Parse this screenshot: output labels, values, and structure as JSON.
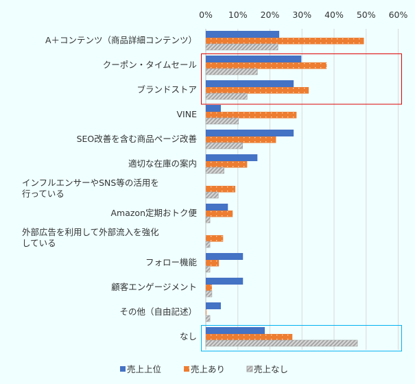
{
  "chart_data": {
    "type": "bar",
    "orientation": "horizontal",
    "categories": [
      "A＋コンテンツ（商品詳細コンテンツ）",
      "クーポン・タイムセール",
      "ブランドストア",
      "VINE",
      "SEO改善を含む商品ページ改善",
      "適切な在庫の案内",
      "インフルエンサーやSNS等の活用を行っている",
      "Amazon定期おトク便",
      "外部広告を利用して外部流入を強化している",
      "フォロー機能",
      "顧客エンゲージメント",
      "その他（自由記述）",
      "なし"
    ],
    "category_lines": [
      [
        "A＋コンテンツ（商品詳細コンテンツ）"
      ],
      [
        "クーポン・タイムセール"
      ],
      [
        "ブランドストア"
      ],
      [
        "VINE"
      ],
      [
        "SEO改善を含む商品ページ改善"
      ],
      [
        "適切な在庫の案内"
      ],
      [
        "インフルエンサーやSNS等の活用を",
        "行っている"
      ],
      [
        "Amazon定期おトク便"
      ],
      [
        "外部広告を利用して外部流入を強化",
        "している"
      ],
      [
        "フォロー機能"
      ],
      [
        "顧客エンゲージメント"
      ],
      [
        "その他（自由記述）"
      ],
      [
        "なし"
      ]
    ],
    "series": [
      {
        "name": "売上上位",
        "color": "#4472c4",
        "pattern": "solid",
        "values": [
          22.9,
          29.8,
          27.4,
          4.7,
          27.4,
          16.1,
          0,
          6.9,
          0,
          11.6,
          11.6,
          4.7,
          18.4
        ]
      },
      {
        "name": "売上あり",
        "color": "#ed7d31",
        "pattern": "dots",
        "values": [
          49.3,
          37.7,
          32.1,
          28.3,
          21.9,
          12.9,
          9.2,
          8.4,
          5.4,
          4.1,
          1.9,
          0.2,
          27.0
        ]
      },
      {
        "name": "売上なし",
        "color": "#a5a5a5",
        "pattern": "hatch",
        "values": [
          22.5,
          16.1,
          12.9,
          10.2,
          11.5,
          5.7,
          3.9,
          1.3,
          1.3,
          1.3,
          1.9,
          1.3,
          47.3
        ]
      }
    ],
    "xlim": [
      0,
      60
    ],
    "x_ticks": [
      "0%",
      "10%",
      "20%",
      "30%",
      "40%",
      "50%",
      "60%"
    ],
    "x_axis_position": "top",
    "grid": true,
    "legend_position": "bottom",
    "highlights": [
      {
        "categories": [
          "クーポン・タイムセール",
          "ブランドストア"
        ],
        "color": "#e00000"
      },
      {
        "categories": [
          "なし"
        ],
        "color": "#00b0f0"
      }
    ]
  }
}
